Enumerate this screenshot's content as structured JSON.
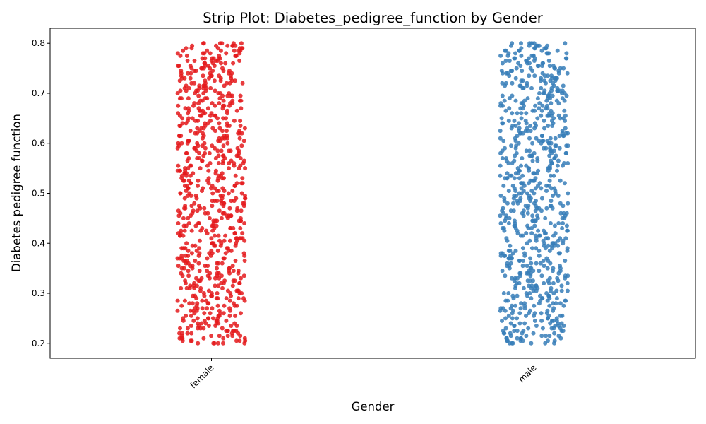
{
  "chart_data": {
    "type": "scatter",
    "subtype": "strip",
    "title": "Strip Plot: Diabetes_pedigree_function by Gender",
    "xlabel": "Gender",
    "ylabel": "Diabetes pedigree function",
    "categories": [
      "female",
      "male"
    ],
    "colors": [
      "#e41a1c",
      "#377eb8"
    ],
    "ylim": [
      0.17,
      0.83
    ],
    "yticks": [
      0.2,
      0.3,
      0.4,
      0.5,
      0.6,
      0.7,
      0.8
    ],
    "ytick_labels": [
      "0.2",
      "0.3",
      "0.4",
      "0.5",
      "0.6",
      "0.7",
      "0.8"
    ],
    "series": [
      {
        "category": "female",
        "color": "#e41a1c",
        "y_min": 0.2,
        "y_max": 0.8,
        "y_step": 0.005
      },
      {
        "category": "male",
        "color": "#377eb8",
        "y_min": 0.2,
        "y_max": 0.8,
        "y_step": 0.005
      }
    ],
    "grid": false,
    "legend": "none",
    "xtick_rotation_deg": 45
  }
}
